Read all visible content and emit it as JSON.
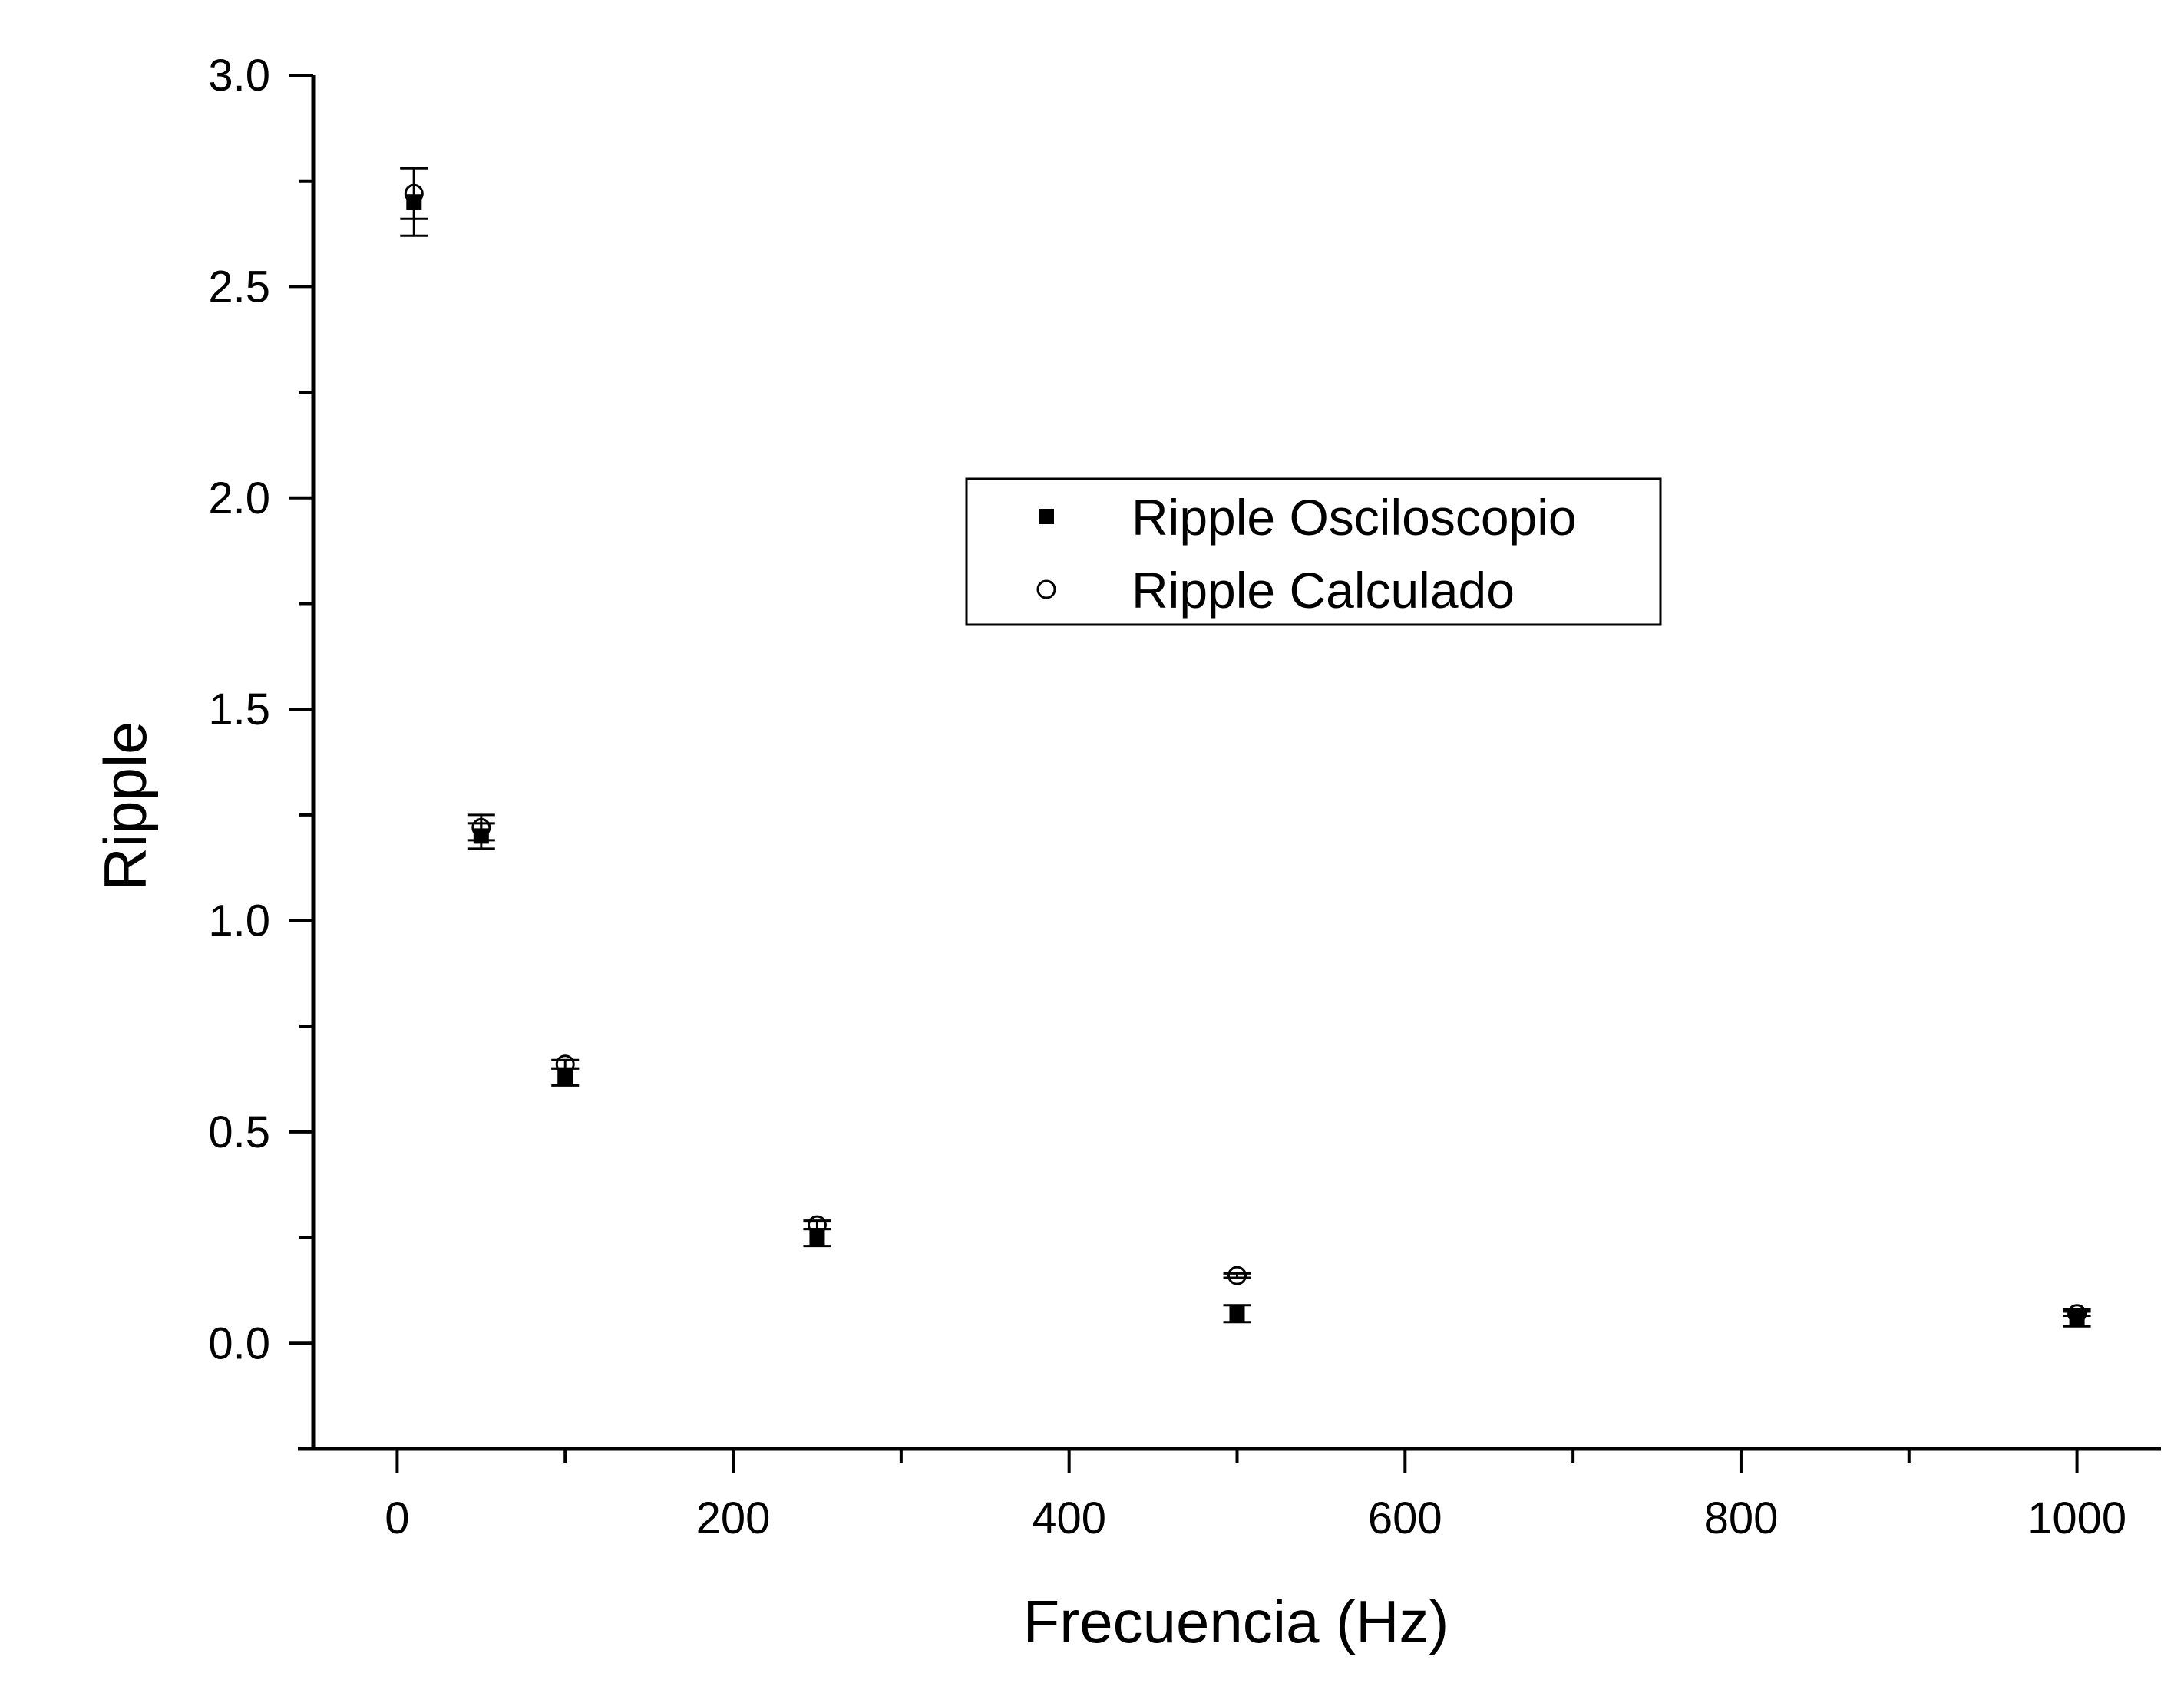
{
  "chart_data": {
    "type": "scatter",
    "title": "",
    "xlabel": "Frecuencia (Hz)",
    "ylabel": "Ripple",
    "xlim": [
      -50,
      1050
    ],
    "ylim": [
      -0.25,
      3.0
    ],
    "xticks": [
      0,
      200,
      400,
      600,
      800,
      1000
    ],
    "xtick_labels": [
      "0",
      "200",
      "400",
      "600",
      "800",
      "1000"
    ],
    "yticks": [
      0.0,
      0.5,
      1.0,
      1.5,
      2.0,
      2.5,
      3.0
    ],
    "ytick_labels": [
      "0.0",
      "0.5",
      "1.0",
      "1.5",
      "2.0",
      "2.5",
      "3.0"
    ],
    "grid": false,
    "legend_position": "center",
    "series": [
      {
        "name": "Ripple Osciloscopio",
        "marker": "filled-square",
        "color": "#000000",
        "points": [
          {
            "x": 10,
            "y": 2.7,
            "err": 0.08
          },
          {
            "x": 50,
            "y": 1.2,
            "err": 0.03
          },
          {
            "x": 100,
            "y": 0.63,
            "err": 0.02
          },
          {
            "x": 250,
            "y": 0.25,
            "err": 0.02
          },
          {
            "x": 500,
            "y": 0.07,
            "err": 0.02
          },
          {
            "x": 1000,
            "y": 0.06,
            "err": 0.02
          }
        ]
      },
      {
        "name": "Ripple Calculado",
        "marker": "open-circle",
        "color": "#000000",
        "points": [
          {
            "x": 10,
            "y": 2.72,
            "err": 0.06
          },
          {
            "x": 50,
            "y": 1.22,
            "err": 0.03
          },
          {
            "x": 100,
            "y": 0.66,
            "err": 0.01
          },
          {
            "x": 250,
            "y": 0.28,
            "err": 0.01
          },
          {
            "x": 500,
            "y": 0.16,
            "err": 0.005
          },
          {
            "x": 1000,
            "y": 0.07,
            "err": 0.005
          }
        ]
      }
    ]
  }
}
